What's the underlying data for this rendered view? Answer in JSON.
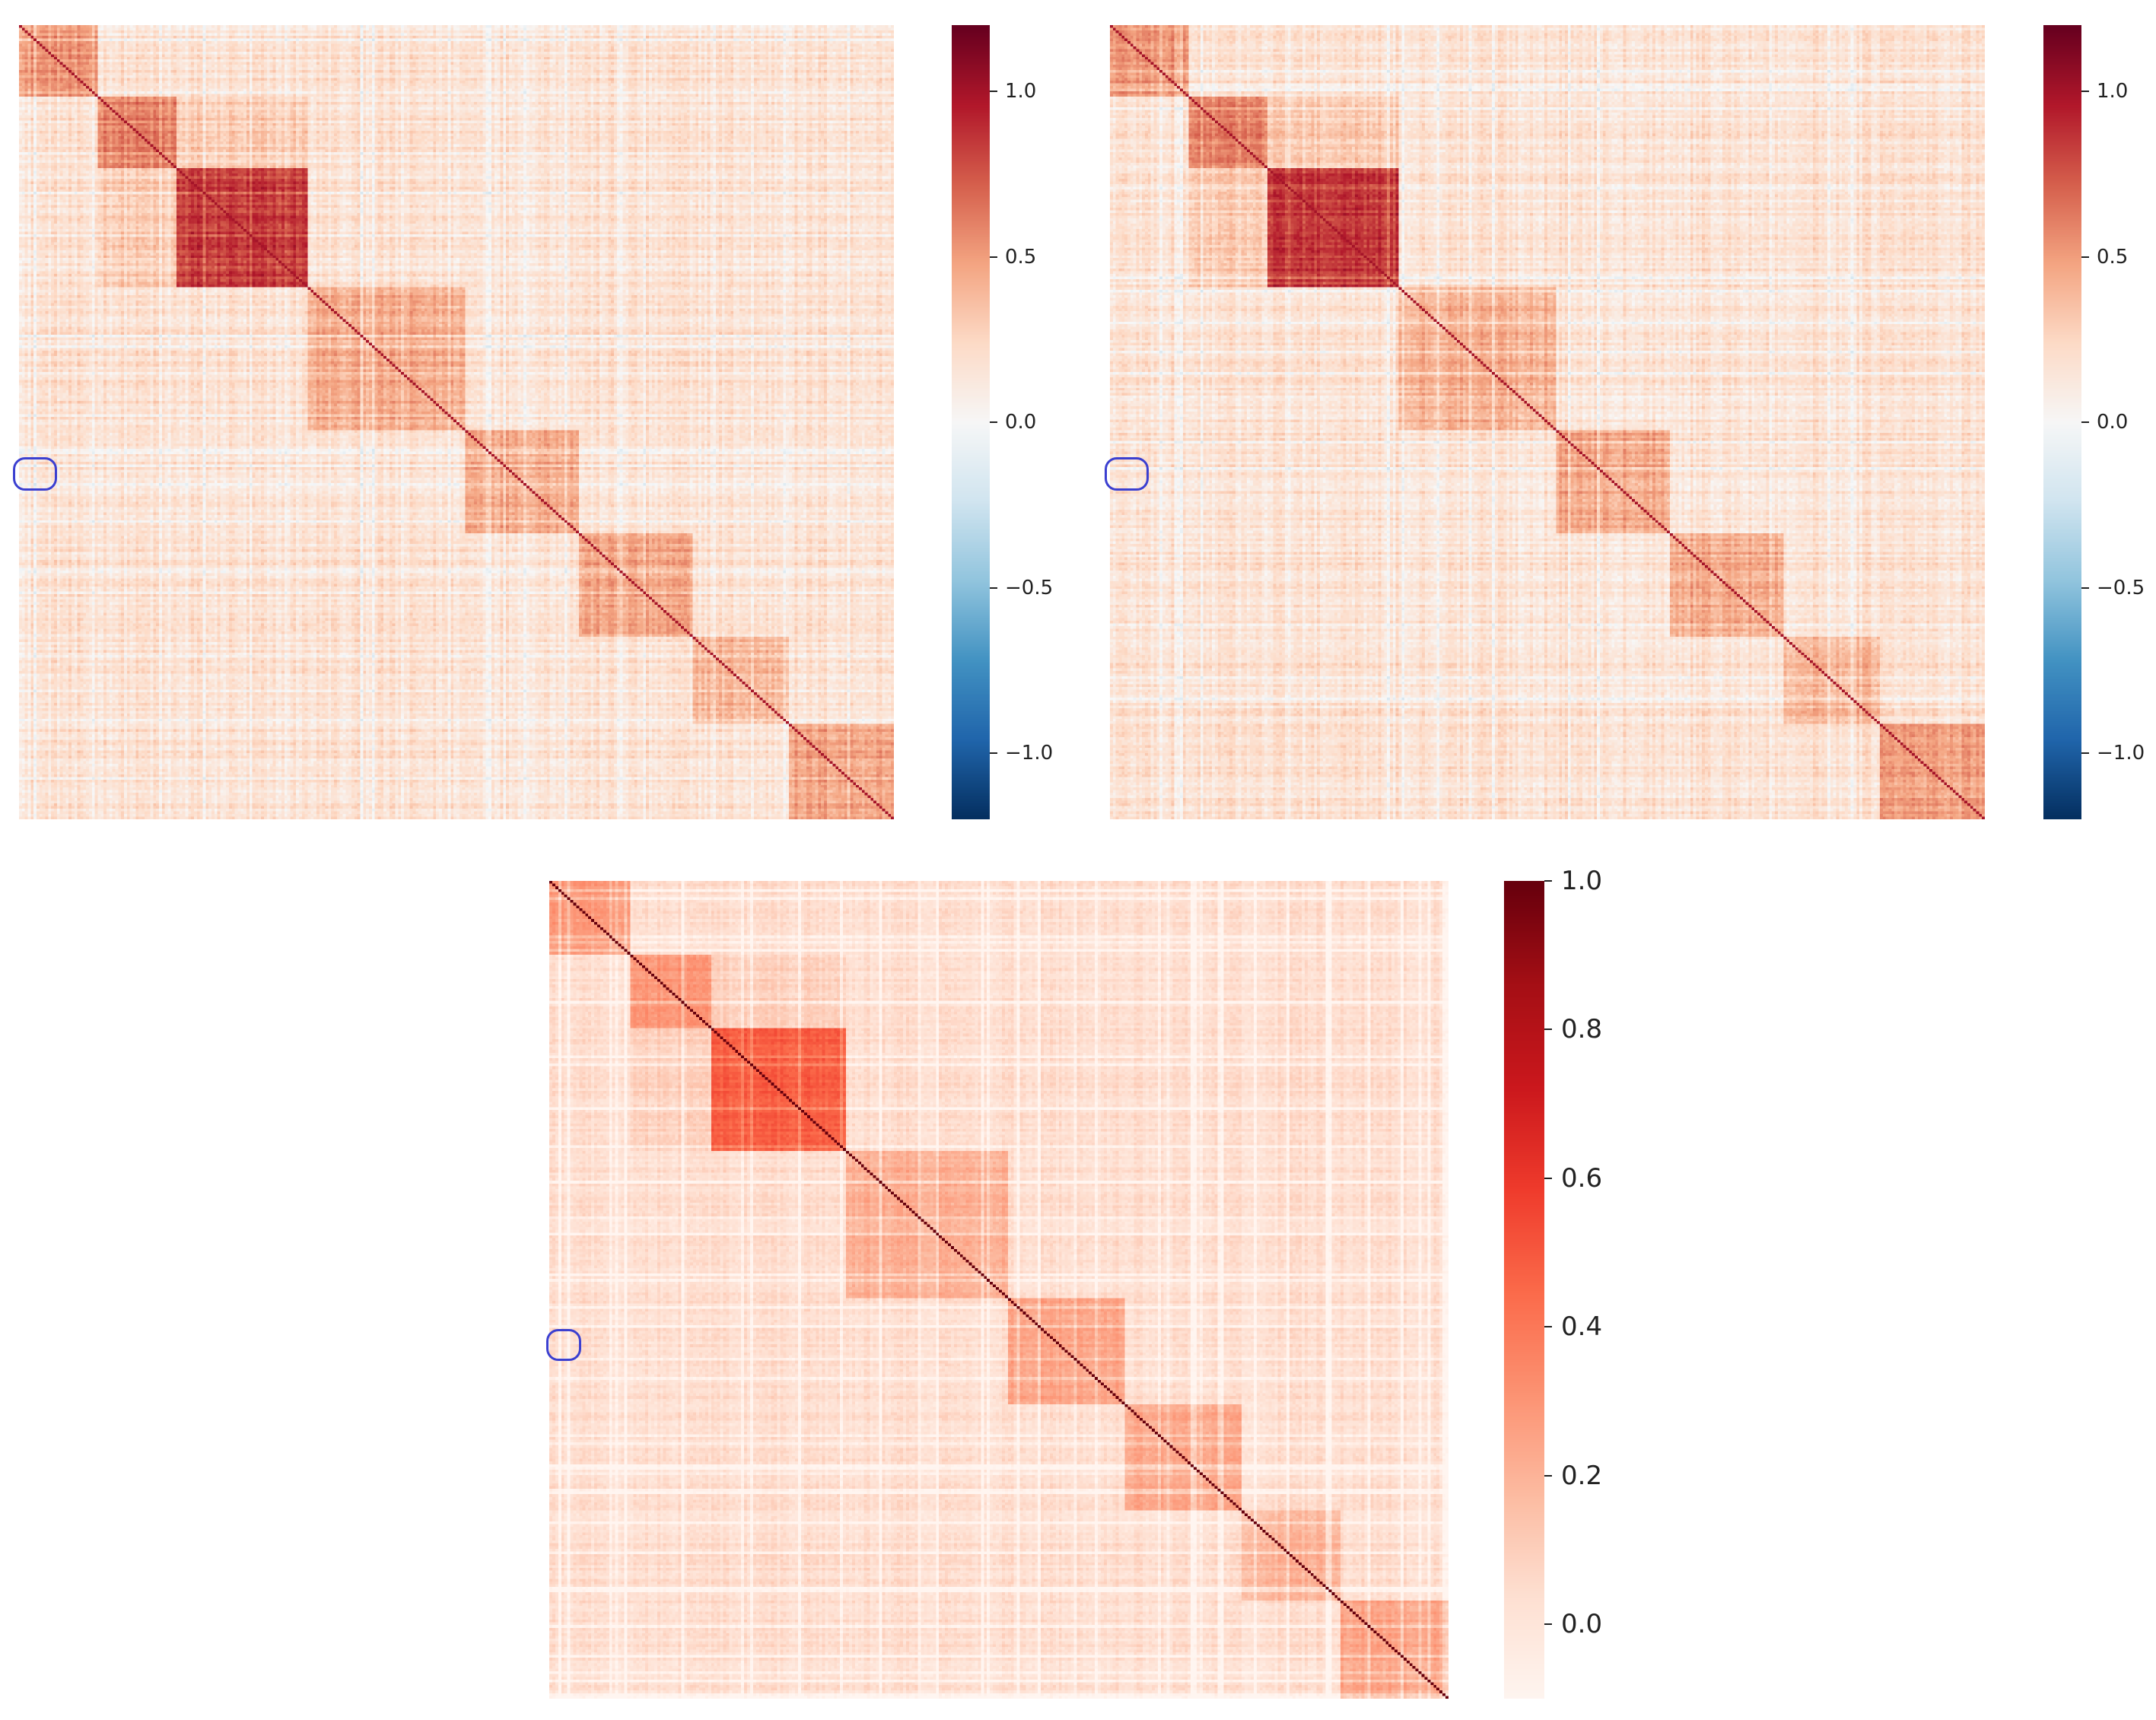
{
  "chart_data": [
    {
      "type": "heatmap",
      "panel": "top-left",
      "description_kind": "correlation matrix",
      "colormap": "RdBu_r",
      "diagonal": 1.0,
      "vmin": -1.2,
      "vmax": 1.2,
      "block_diagonal_fractions": [
        [
          0.0,
          0.09
        ],
        [
          0.09,
          0.18
        ],
        [
          0.18,
          0.33
        ],
        [
          0.33,
          0.51
        ],
        [
          0.51,
          0.64
        ],
        [
          0.64,
          0.77
        ],
        [
          0.77,
          0.88
        ],
        [
          0.88,
          1.0
        ]
      ],
      "highlight_marker": "row band near left edge",
      "colorbar": {
        "ticks": [
          1.0,
          0.5,
          0.0,
          -0.5,
          -1.0
        ],
        "tick_labels": [
          "1.0",
          "0.5",
          "0.0",
          "−0.5",
          "−1.0"
        ]
      }
    },
    {
      "type": "heatmap",
      "panel": "top-right",
      "description_kind": "correlation matrix",
      "colormap": "RdBu_r",
      "diagonal": 1.0,
      "vmin": -1.2,
      "vmax": 1.2,
      "block_diagonal_fractions": [
        [
          0.0,
          0.09
        ],
        [
          0.09,
          0.18
        ],
        [
          0.18,
          0.33
        ],
        [
          0.33,
          0.51
        ],
        [
          0.51,
          0.64
        ],
        [
          0.64,
          0.77
        ],
        [
          0.77,
          0.88
        ],
        [
          0.88,
          1.0
        ]
      ],
      "highlight_marker": "row band near left edge",
      "colorbar": {
        "ticks": [
          1.0,
          0.5,
          0.0,
          -0.5,
          -1.0
        ],
        "tick_labels": [
          "1.0",
          "0.5",
          "0.0",
          "−0.5",
          "−1.0"
        ]
      }
    },
    {
      "type": "heatmap",
      "panel": "bottom",
      "description_kind": "correlation matrix (positive scale)",
      "colormap": "Reds",
      "diagonal": 1.0,
      "vmin": -0.1,
      "vmax": 1.0,
      "block_diagonal_fractions": [
        [
          0.0,
          0.09
        ],
        [
          0.09,
          0.18
        ],
        [
          0.18,
          0.33
        ],
        [
          0.33,
          0.51
        ],
        [
          0.51,
          0.64
        ],
        [
          0.64,
          0.77
        ],
        [
          0.77,
          0.88
        ],
        [
          0.88,
          1.0
        ]
      ],
      "highlight_marker": "row band near left edge",
      "colorbar": {
        "ticks": [
          1.0,
          0.8,
          0.6,
          0.4,
          0.2,
          0.0
        ],
        "tick_labels": [
          "1.0",
          "0.8",
          "0.6",
          "0.4",
          "0.2",
          "0.0"
        ]
      }
    }
  ]
}
